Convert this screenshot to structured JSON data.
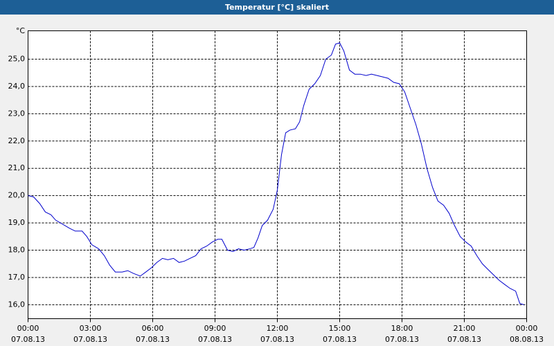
{
  "chart_data": {
    "type": "line",
    "title": "Temperatur [°C] skaliert",
    "y_unit": "°C",
    "x": [
      0,
      0.27,
      0.57,
      0.83,
      1.1,
      1.33,
      1.67,
      2,
      2.27,
      2.6,
      2.83,
      3.07,
      3.4,
      3.67,
      3.93,
      4.2,
      4.53,
      4.8,
      5.07,
      5.4,
      5.67,
      5.93,
      6.2,
      6.47,
      6.73,
      7,
      7.27,
      7.53,
      7.8,
      8.07,
      8.33,
      8.6,
      8.87,
      9.13,
      9.33,
      9.6,
      9.87,
      10.13,
      10.4,
      10.67,
      10.87,
      11.07,
      11.27,
      11.53,
      11.8,
      12,
      12.2,
      12.4,
      12.6,
      12.87,
      13.07,
      13.27,
      13.53,
      13.8,
      14.07,
      14.33,
      14.6,
      14.8,
      15,
      15.2,
      15.47,
      15.73,
      16,
      16.27,
      16.53,
      16.8,
      17.07,
      17.33,
      17.6,
      17.87,
      18.13,
      18.4,
      18.67,
      18.93,
      19.2,
      19.47,
      19.73,
      20,
      20.27,
      20.53,
      20.8,
      21.07,
      21.33,
      21.6,
      21.87,
      22.13,
      22.4,
      22.67,
      22.93,
      23.2,
      23.47,
      23.67,
      23.87
    ],
    "series": [
      {
        "color": "#0000cc",
        "values": [
          20.0,
          19.95,
          19.7,
          19.4,
          19.3,
          19.1,
          18.95,
          18.8,
          18.7,
          18.7,
          18.5,
          18.2,
          18.05,
          17.8,
          17.45,
          17.2,
          17.2,
          17.25,
          17.15,
          17.05,
          17.2,
          17.35,
          17.55,
          17.7,
          17.65,
          17.7,
          17.55,
          17.6,
          17.7,
          17.8,
          18.05,
          18.15,
          18.3,
          18.4,
          18.4,
          18.0,
          17.95,
          18.05,
          18.0,
          18.05,
          18.1,
          18.45,
          18.9,
          19.1,
          19.5,
          20.2,
          21.5,
          22.3,
          22.4,
          22.45,
          22.7,
          23.3,
          23.9,
          24.1,
          24.4,
          25.0,
          25.15,
          25.55,
          25.6,
          25.3,
          24.6,
          24.45,
          24.45,
          24.4,
          24.45,
          24.4,
          24.35,
          24.3,
          24.15,
          24.1,
          23.8,
          23.2,
          22.6,
          21.9,
          21.0,
          20.3,
          19.8,
          19.65,
          19.35,
          18.9,
          18.5,
          18.3,
          18.15,
          17.8,
          17.5,
          17.3,
          17.1,
          16.9,
          16.75,
          16.6,
          16.5,
          16.05,
          16.0
        ]
      }
    ],
    "xlim": [
      0,
      24
    ],
    "xticks": [
      {
        "value": 0,
        "label": [
          "00:00",
          "07.08.13"
        ]
      },
      {
        "value": 3,
        "label": [
          "03:00",
          "07.08.13"
        ]
      },
      {
        "value": 6,
        "label": [
          "06:00",
          "07.08.13"
        ]
      },
      {
        "value": 9,
        "label": [
          "09:00",
          "07.08.13"
        ]
      },
      {
        "value": 12,
        "label": [
          "12:00",
          "07.08.13"
        ]
      },
      {
        "value": 15,
        "label": [
          "15:00",
          "07.08.13"
        ]
      },
      {
        "value": 18,
        "label": [
          "18:00",
          "07.08.13"
        ]
      },
      {
        "value": 21,
        "label": [
          "21:00",
          "07.08.13"
        ]
      },
      {
        "value": 24,
        "label": [
          "00:00",
          "08.08.13"
        ]
      }
    ],
    "ylim": [
      15.49,
      26.04
    ],
    "yticks": [
      {
        "value": 16,
        "label": "16,0"
      },
      {
        "value": 17,
        "label": "17,0"
      },
      {
        "value": 18,
        "label": "18,0"
      },
      {
        "value": 19,
        "label": "19,0"
      },
      {
        "value": 20,
        "label": "20,0"
      },
      {
        "value": 21,
        "label": "21,0"
      },
      {
        "value": 22,
        "label": "22,0"
      },
      {
        "value": 23,
        "label": "23,0"
      },
      {
        "value": 24,
        "label": "24,0"
      },
      {
        "value": 25,
        "label": "25,0"
      }
    ],
    "grid": true
  }
}
